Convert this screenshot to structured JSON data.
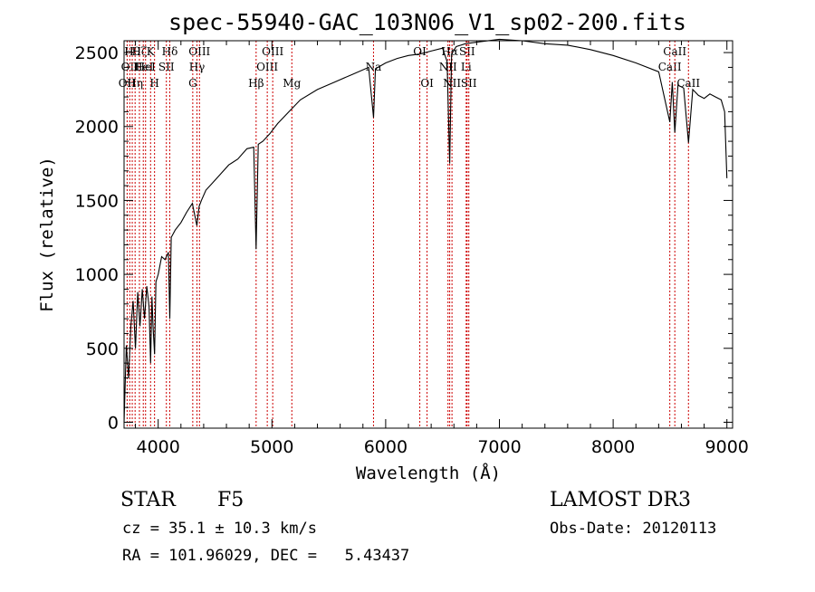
{
  "chart_data": {
    "type": "line",
    "title": "spec-55940-GAC_103N06_V1_sp02-200.fits",
    "xlabel": "Wavelength (Å)",
    "ylabel": "Flux (relative)",
    "xlim": [
      3700,
      9050
    ],
    "ylim": [
      -40,
      2580
    ],
    "xticks": [
      4000,
      5000,
      6000,
      7000,
      8000,
      9000
    ],
    "yticks": [
      0,
      500,
      1000,
      1500,
      2000,
      2500
    ],
    "series": [
      {
        "name": "flux",
        "x": [
          3700,
          3720,
          3740,
          3760,
          3780,
          3800,
          3820,
          3840,
          3860,
          3880,
          3900,
          3920,
          3933,
          3945,
          3955,
          3968,
          3980,
          4000,
          4030,
          4060,
          4090,
          4102,
          4115,
          4150,
          4200,
          4250,
          4300,
          4340,
          4360,
          4380,
          4420,
          4480,
          4550,
          4620,
          4700,
          4780,
          4840,
          4861,
          4880,
          4920,
          4980,
          5050,
          5150,
          5250,
          5400,
          5550,
          5700,
          5850,
          5893,
          5910,
          6000,
          6100,
          6200,
          6300,
          6400,
          6500,
          6540,
          6563,
          6580,
          6620,
          6700,
          6800,
          7000,
          7200,
          7400,
          7600,
          7800,
          8000,
          8200,
          8400,
          8498,
          8520,
          8542,
          8570,
          8620,
          8662,
          8700,
          8750,
          8800,
          8850,
          8900,
          8950,
          8980,
          9000
        ],
        "y": [
          0,
          520,
          300,
          650,
          820,
          500,
          880,
          650,
          900,
          700,
          920,
          780,
          400,
          850,
          650,
          460,
          950,
          1000,
          1120,
          1100,
          1150,
          700,
          1250,
          1300,
          1350,
          1420,
          1480,
          1330,
          1460,
          1500,
          1570,
          1620,
          1680,
          1740,
          1780,
          1850,
          1860,
          1170,
          1880,
          1900,
          1950,
          2020,
          2100,
          2180,
          2250,
          2300,
          2350,
          2400,
          2060,
          2390,
          2430,
          2460,
          2480,
          2490,
          2510,
          2530,
          2440,
          1750,
          2490,
          2540,
          2560,
          2570,
          2590,
          2580,
          2560,
          2550,
          2520,
          2480,
          2430,
          2370,
          2030,
          2300,
          1960,
          2280,
          2260,
          1890,
          2250,
          2210,
          2190,
          2220,
          2200,
          2180,
          2100,
          1650
        ]
      }
    ],
    "line_markers": [
      {
        "wavelength": 3727,
        "labels": [
          "OII"
        ],
        "row": 2
      },
      {
        "wavelength": 3750,
        "labels": [
          "OII"
        ],
        "row": 1
      },
      {
        "wavelength": 3772,
        "labels": [
          "Hθ"
        ],
        "row": 0
      },
      {
        "wavelength": 3797,
        "labels": [
          "Hη"
        ],
        "row": 2
      },
      {
        "wavelength": 3835,
        "labels": [
          "Hζ"
        ],
        "row": 0
      },
      {
        "wavelength": 3869,
        "labels": [
          "HeI"
        ],
        "row": 1
      },
      {
        "wavelength": 3889,
        "labels": [
          "HeI"
        ],
        "row": 1
      },
      {
        "wavelength": 3933,
        "labels": [
          "K"
        ],
        "row": 0
      },
      {
        "wavelength": 3968,
        "labels": [
          "H"
        ],
        "row": 2
      },
      {
        "wavelength": 4072,
        "labels": [
          "SII"
        ],
        "row": 1
      },
      {
        "wavelength": 4102,
        "labels": [
          "Hδ"
        ],
        "row": 0
      },
      {
        "wavelength": 4304,
        "labels": [
          "G"
        ],
        "row": 2
      },
      {
        "wavelength": 4341,
        "labels": [
          "Hγ"
        ],
        "row": 1
      },
      {
        "wavelength": 4363,
        "labels": [
          "OIII"
        ],
        "row": 0
      },
      {
        "wavelength": 4861,
        "labels": [
          "Hβ"
        ],
        "row": 2
      },
      {
        "wavelength": 4959,
        "labels": [
          "OIII"
        ],
        "row": 1
      },
      {
        "wavelength": 5007,
        "labels": [
          "OIII"
        ],
        "row": 0
      },
      {
        "wavelength": 5175,
        "labels": [
          "Mg"
        ],
        "row": 2
      },
      {
        "wavelength": 5893,
        "labels": [
          "Na"
        ],
        "row": 1
      },
      {
        "wavelength": 6300,
        "labels": [
          "OI"
        ],
        "row": 0
      },
      {
        "wavelength": 6364,
        "labels": [
          "OI"
        ],
        "row": 2
      },
      {
        "wavelength": 6548,
        "labels": [
          "NII"
        ],
        "row": 1
      },
      {
        "wavelength": 6563,
        "labels": [
          "Hα"
        ],
        "row": 0
      },
      {
        "wavelength": 6583,
        "labels": [
          "NII"
        ],
        "row": 2
      },
      {
        "wavelength": 6708,
        "labels": [
          "Li"
        ],
        "row": 1
      },
      {
        "wavelength": 6716,
        "labels": [
          "SII"
        ],
        "row": 0
      },
      {
        "wavelength": 6731,
        "labels": [
          "SII"
        ],
        "row": 2
      },
      {
        "wavelength": 8498,
        "labels": [
          "CaII"
        ],
        "row": 1
      },
      {
        "wavelength": 8542,
        "labels": [
          "CaII"
        ],
        "row": 0
      },
      {
        "wavelength": 8662,
        "labels": [
          "CaII"
        ],
        "row": 2
      }
    ]
  },
  "info": {
    "object_class": "STAR",
    "subclass": "F5",
    "cz": "cz = 35.1 ± 10.3 km/s",
    "coords": "RA = 101.96029, DEC =   5.43437",
    "survey": "LAMOST DR3",
    "obs_date": "Obs-Date: 20120113"
  },
  "colors": {
    "line_marker": "#cc0000",
    "spectrum": "#000000",
    "axes": "#000000"
  }
}
